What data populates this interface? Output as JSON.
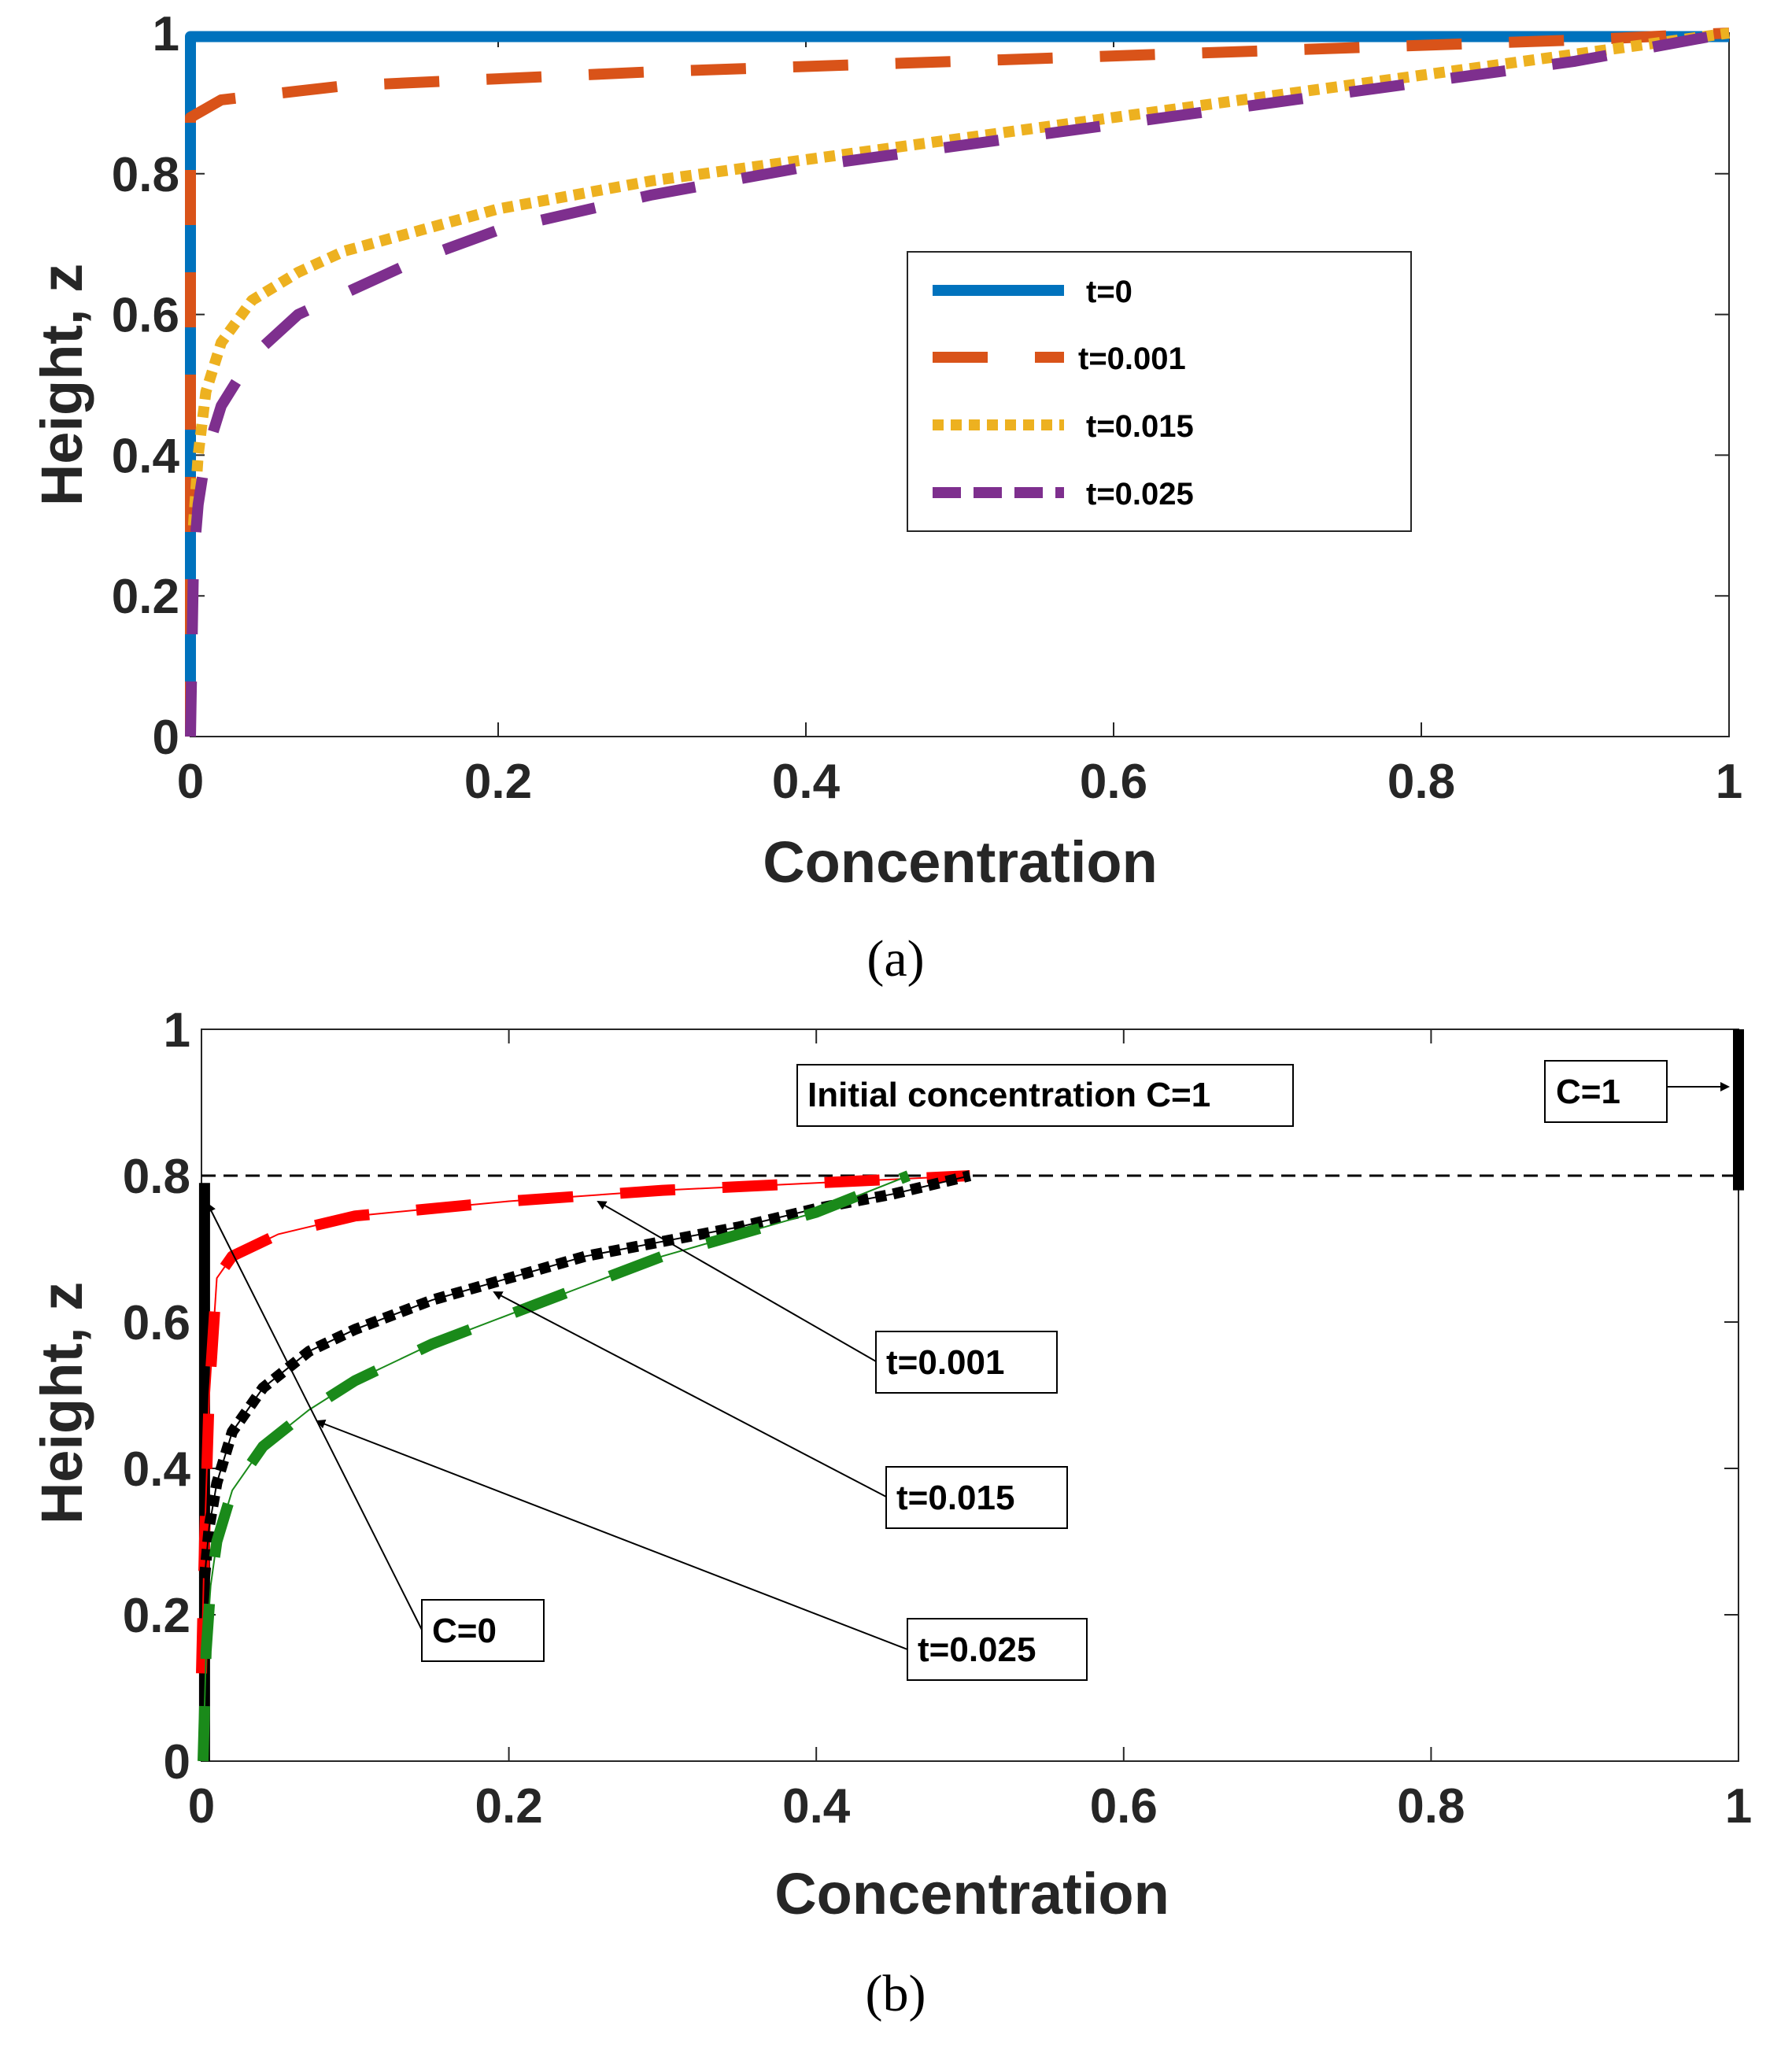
{
  "chart_data": [
    {
      "panel": "a",
      "caption": "(a)",
      "type": "line",
      "xlabel": "Concentration",
      "ylabel": "Height, z",
      "xlim": [
        0,
        1
      ],
      "ylim": [
        0,
        1
      ],
      "xticks": [
        "0",
        "0.2",
        "0.4",
        "0.6",
        "0.8",
        "1"
      ],
      "yticks": [
        "0",
        "0.2",
        "0.4",
        "0.6",
        "0.8",
        "1"
      ],
      "grid": false,
      "legend_position": "center-right",
      "series": [
        {
          "name": "t=0",
          "color": "#0072BD",
          "style": "solid",
          "x": [
            0,
            0,
            1
          ],
          "y": [
            0,
            0.995,
            0.995
          ]
        },
        {
          "name": "t=0.001",
          "color": "#D95319",
          "style": "dashed",
          "x": [
            0,
            0,
            0.02,
            0.1,
            0.3,
            0.5,
            0.7,
            0.9,
            1.0
          ],
          "y": [
            0,
            0.88,
            0.905,
            0.925,
            0.945,
            0.96,
            0.975,
            0.99,
            1.0
          ]
        },
        {
          "name": "t=0.015",
          "color": "#EDB120",
          "style": "dotted",
          "x": [
            0.002,
            0.005,
            0.01,
            0.02,
            0.04,
            0.07,
            0.1,
            0.15,
            0.2,
            0.3,
            0.4,
            0.5,
            0.6,
            0.7,
            0.8,
            0.9,
            1.0
          ],
          "y": [
            0.3,
            0.4,
            0.49,
            0.56,
            0.62,
            0.66,
            0.69,
            0.72,
            0.75,
            0.79,
            0.82,
            0.85,
            0.88,
            0.91,
            0.94,
            0.97,
            1.0
          ]
        },
        {
          "name": "t=0.025",
          "color": "#7E2F8E",
          "style": "dashed",
          "x": [
            0,
            0.002,
            0.005,
            0.01,
            0.02,
            0.04,
            0.07,
            0.1,
            0.15,
            0.2,
            0.3,
            0.4,
            0.5,
            0.6,
            0.7,
            0.8,
            0.9,
            1.0
          ],
          "y": [
            0,
            0.25,
            0.33,
            0.4,
            0.47,
            0.54,
            0.6,
            0.63,
            0.68,
            0.72,
            0.77,
            0.81,
            0.84,
            0.87,
            0.9,
            0.93,
            0.96,
            1.0
          ]
        }
      ]
    },
    {
      "panel": "b",
      "caption": "(b)",
      "type": "line",
      "xlabel": "Concentration",
      "ylabel": "Height, z",
      "xlim": [
        0,
        1
      ],
      "ylim": [
        0,
        1
      ],
      "xticks": [
        "0",
        "0.2",
        "0.4",
        "0.6",
        "0.8",
        "1"
      ],
      "yticks": [
        "0",
        "0.2",
        "0.4",
        "0.6",
        "0.8",
        "1"
      ],
      "grid": false,
      "reference_line": {
        "y": 0.8,
        "style": "dashed",
        "color": "#000000"
      },
      "series": [
        {
          "name": "C=0",
          "color": "#000000",
          "style": "solid",
          "x": [
            0.002,
            0.002
          ],
          "y": [
            0,
            0.79
          ]
        },
        {
          "name": "C=1",
          "color": "#000000",
          "style": "solid",
          "x": [
            1,
            1
          ],
          "y": [
            0.78,
            1
          ]
        },
        {
          "name": "t=0.001",
          "color": "#FF0000",
          "style": "dashed",
          "x": [
            0,
            0.002,
            0.005,
            0.01,
            0.02,
            0.05,
            0.1,
            0.2,
            0.3,
            0.4,
            0.5
          ],
          "y": [
            0.12,
            0.3,
            0.5,
            0.66,
            0.69,
            0.72,
            0.745,
            0.765,
            0.78,
            0.79,
            0.8
          ]
        },
        {
          "name": "t=0.015",
          "color": "#000000",
          "style": "dotted",
          "x": [
            0.002,
            0.005,
            0.01,
            0.02,
            0.04,
            0.07,
            0.1,
            0.15,
            0.2,
            0.25,
            0.3,
            0.35,
            0.4,
            0.45,
            0.5
          ],
          "y": [
            0.25,
            0.32,
            0.38,
            0.45,
            0.51,
            0.56,
            0.59,
            0.63,
            0.66,
            0.69,
            0.71,
            0.73,
            0.755,
            0.775,
            0.8
          ]
        },
        {
          "name": "t=0.025",
          "color": "#1A8A1A",
          "style": "dashed",
          "x": [
            0.001,
            0.003,
            0.006,
            0.01,
            0.02,
            0.04,
            0.07,
            0.1,
            0.15,
            0.2,
            0.25,
            0.3,
            0.35,
            0.4,
            0.46
          ],
          "y": [
            0,
            0.15,
            0.24,
            0.3,
            0.37,
            0.43,
            0.48,
            0.52,
            0.57,
            0.61,
            0.65,
            0.69,
            0.72,
            0.75,
            0.8
          ]
        }
      ],
      "annotations": [
        {
          "text": "Initial concentration C=1"
        },
        {
          "text": "C=1"
        },
        {
          "text": "t=0.001"
        },
        {
          "text": "t=0.015"
        },
        {
          "text": "C=0"
        },
        {
          "text": "t=0.025"
        }
      ]
    }
  ]
}
